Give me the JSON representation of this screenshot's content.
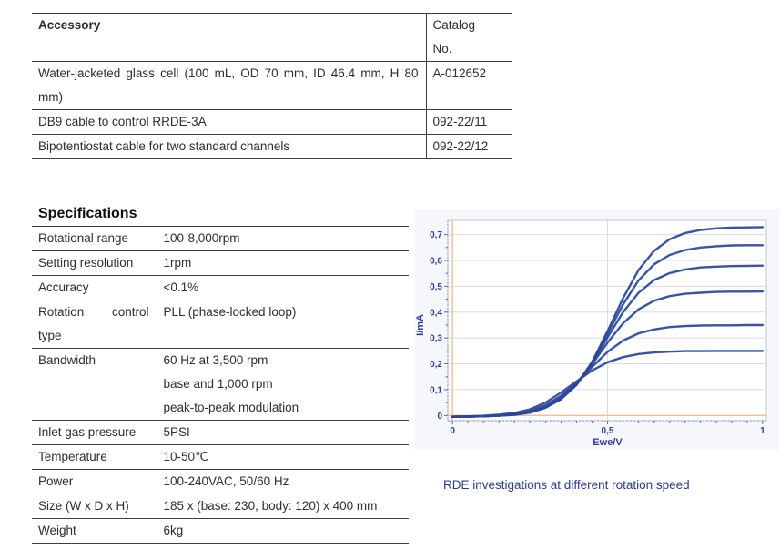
{
  "accessory_table": {
    "header": {
      "col1": "Accessory",
      "col2_lines": [
        "Catalog",
        "No."
      ]
    },
    "rows": [
      {
        "name": "Water-jacketed glass cell (100 mL, OD 70 mm, ID 46.4 mm, H 80 mm)",
        "catalog": "A-012652"
      },
      {
        "name": "DB9 cable to control RRDE-3A",
        "catalog": "092-22/11"
      },
      {
        "name": "Bipotentiostat cable for two standard channels",
        "catalog": "092-22/12"
      }
    ]
  },
  "specifications": {
    "heading": "Specifications",
    "rows": [
      {
        "label": "Rotational range",
        "value_lines": [
          "100-8,000rpm"
        ]
      },
      {
        "label": "Setting resolution",
        "value_lines": [
          "1rpm"
        ]
      },
      {
        "label": "Accuracy",
        "value_lines": [
          "<0.1%"
        ]
      },
      {
        "label": "Rotation control type",
        "value_lines": [
          "PLL (phase-locked loop)"
        ]
      },
      {
        "label": "Bandwidth",
        "value_lines": [
          "60 Hz at 3,500 rpm",
          "base and 1,000 rpm",
          "peak-to-peak modulation"
        ]
      },
      {
        "label": "Inlet gas pressure",
        "value_lines": [
          "5PSI"
        ]
      },
      {
        "label": "Temperature",
        "value_lines": [
          "10-50℃"
        ]
      },
      {
        "label": "Power",
        "value_lines": [
          "100-240VAC, 50/60 Hz"
        ]
      },
      {
        "label": "Size (W x D x H)",
        "value_lines": [
          "185 x (base: 230, body: 120) x 400 mm"
        ]
      },
      {
        "label": "Weight",
        "value_lines": [
          "6kg"
        ]
      }
    ]
  },
  "chart": {
    "caption": "RDE investigations at different rotation speed"
  },
  "chart_data": {
    "type": "line",
    "title": "",
    "xlabel": "Ewe/V",
    "ylabel": "I/mA",
    "xlim": [
      -0.015,
      1.012
    ],
    "ylim": [
      -0.02,
      0.755
    ],
    "grid": {
      "horizontal_step": 0.1,
      "vertical_lines": [
        0.5
      ],
      "on": true
    },
    "legend": "none",
    "x_ticks": [
      {
        "v": 0,
        "label": "0"
      },
      {
        "v": 0.5,
        "label": "0,5"
      },
      {
        "v": 1,
        "label": "1"
      }
    ],
    "y_ticks": [
      {
        "v": 0,
        "label": "0"
      },
      {
        "v": 0.1,
        "label": "0,1"
      },
      {
        "v": 0.2,
        "label": "0,2"
      },
      {
        "v": 0.3,
        "label": "0,3"
      },
      {
        "v": 0.4,
        "label": "0,4"
      },
      {
        "v": 0.5,
        "label": "0,5"
      },
      {
        "v": 0.6,
        "label": "0,6"
      },
      {
        "v": 0.7,
        "label": "0,7"
      }
    ],
    "minor_tick_step": 0.05,
    "colors": {
      "curve": "#2b479c",
      "zero_lines": "#f1bd93",
      "grid": "#dbdce0",
      "axis": "#8290c8",
      "plot_border": "#c3c7cd"
    },
    "x": [
      0,
      0.05,
      0.1,
      0.15,
      0.2,
      0.25,
      0.3,
      0.35,
      0.4,
      0.45,
      0.5,
      0.55,
      0.6,
      0.65,
      0.7,
      0.75,
      0.8,
      0.85,
      0.9,
      0.95,
      1.0
    ],
    "series": [
      {
        "name": "curve-1",
        "limiting_current_mA": 0.73,
        "values": [
          -0.005,
          -0.004,
          -0.003,
          -0.001,
          0.003,
          0.011,
          0.03,
          0.063,
          0.118,
          0.207,
          0.326,
          0.454,
          0.563,
          0.637,
          0.682,
          0.706,
          0.718,
          0.724,
          0.727,
          0.728,
          0.729
        ]
      },
      {
        "name": "curve-2",
        "limiting_current_mA": 0.66,
        "values": [
          -0.005,
          -0.004,
          -0.003,
          -0.001,
          0.003,
          0.012,
          0.031,
          0.064,
          0.119,
          0.205,
          0.316,
          0.43,
          0.523,
          0.585,
          0.621,
          0.64,
          0.65,
          0.655,
          0.658,
          0.659,
          0.659
        ]
      },
      {
        "name": "curve-3",
        "limiting_current_mA": 0.58,
        "values": [
          -0.005,
          -0.004,
          -0.003,
          -0.001,
          0.004,
          0.012,
          0.032,
          0.066,
          0.12,
          0.202,
          0.302,
          0.4,
          0.475,
          0.524,
          0.551,
          0.565,
          0.573,
          0.576,
          0.578,
          0.579,
          0.58
        ]
      },
      {
        "name": "curve-4",
        "limiting_current_mA": 0.48,
        "values": [
          -0.005,
          -0.004,
          -0.003,
          0.0,
          0.004,
          0.013,
          0.034,
          0.069,
          0.123,
          0.198,
          0.282,
          0.357,
          0.411,
          0.444,
          0.462,
          0.471,
          0.475,
          0.478,
          0.479,
          0.479,
          0.48
        ]
      },
      {
        "name": "curve-5",
        "limiting_current_mA": 0.35,
        "values": [
          -0.005,
          -0.004,
          -0.002,
          0.001,
          0.006,
          0.017,
          0.04,
          0.076,
          0.126,
          0.188,
          0.246,
          0.29,
          0.318,
          0.333,
          0.342,
          0.346,
          0.348,
          0.349,
          0.349,
          0.35,
          0.35
        ]
      },
      {
        "name": "curve-6",
        "limiting_current_mA": 0.25,
        "values": [
          -0.004,
          -0.003,
          -0.001,
          0.003,
          0.01,
          0.024,
          0.05,
          0.089,
          0.132,
          0.174,
          0.206,
          0.226,
          0.238,
          0.244,
          0.247,
          0.249,
          0.249,
          0.25,
          0.25,
          0.25,
          0.25
        ]
      }
    ]
  }
}
